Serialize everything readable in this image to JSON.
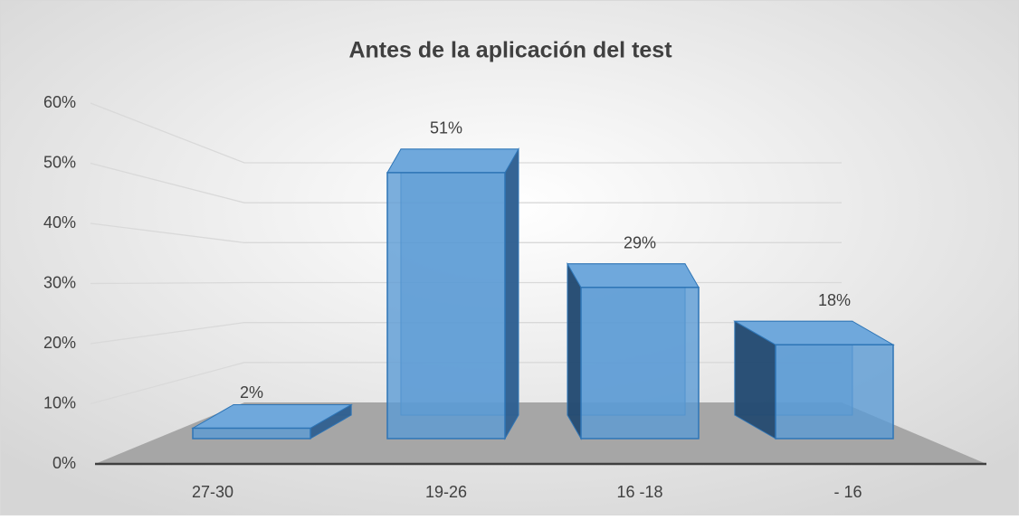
{
  "chart_data": {
    "type": "bar3d",
    "title": "Antes de la aplicación del test",
    "categories": [
      "27-30",
      "19-26",
      "16 -18",
      "- 16"
    ],
    "values": [
      2,
      51,
      29,
      18
    ],
    "value_labels": [
      "2%",
      "51%",
      "29%",
      "18%"
    ],
    "color": "#5b9bd5",
    "ylim": [
      0,
      60
    ],
    "yticks": [
      {
        "value": 0,
        "label": "0%"
      },
      {
        "value": 10,
        "label": "10%"
      },
      {
        "value": 20,
        "label": "20%"
      },
      {
        "value": 30,
        "label": "30%"
      },
      {
        "value": 40,
        "label": "40%"
      },
      {
        "value": 50,
        "label": "50%"
      },
      {
        "value": 60,
        "label": "60%"
      }
    ],
    "grid": true
  }
}
